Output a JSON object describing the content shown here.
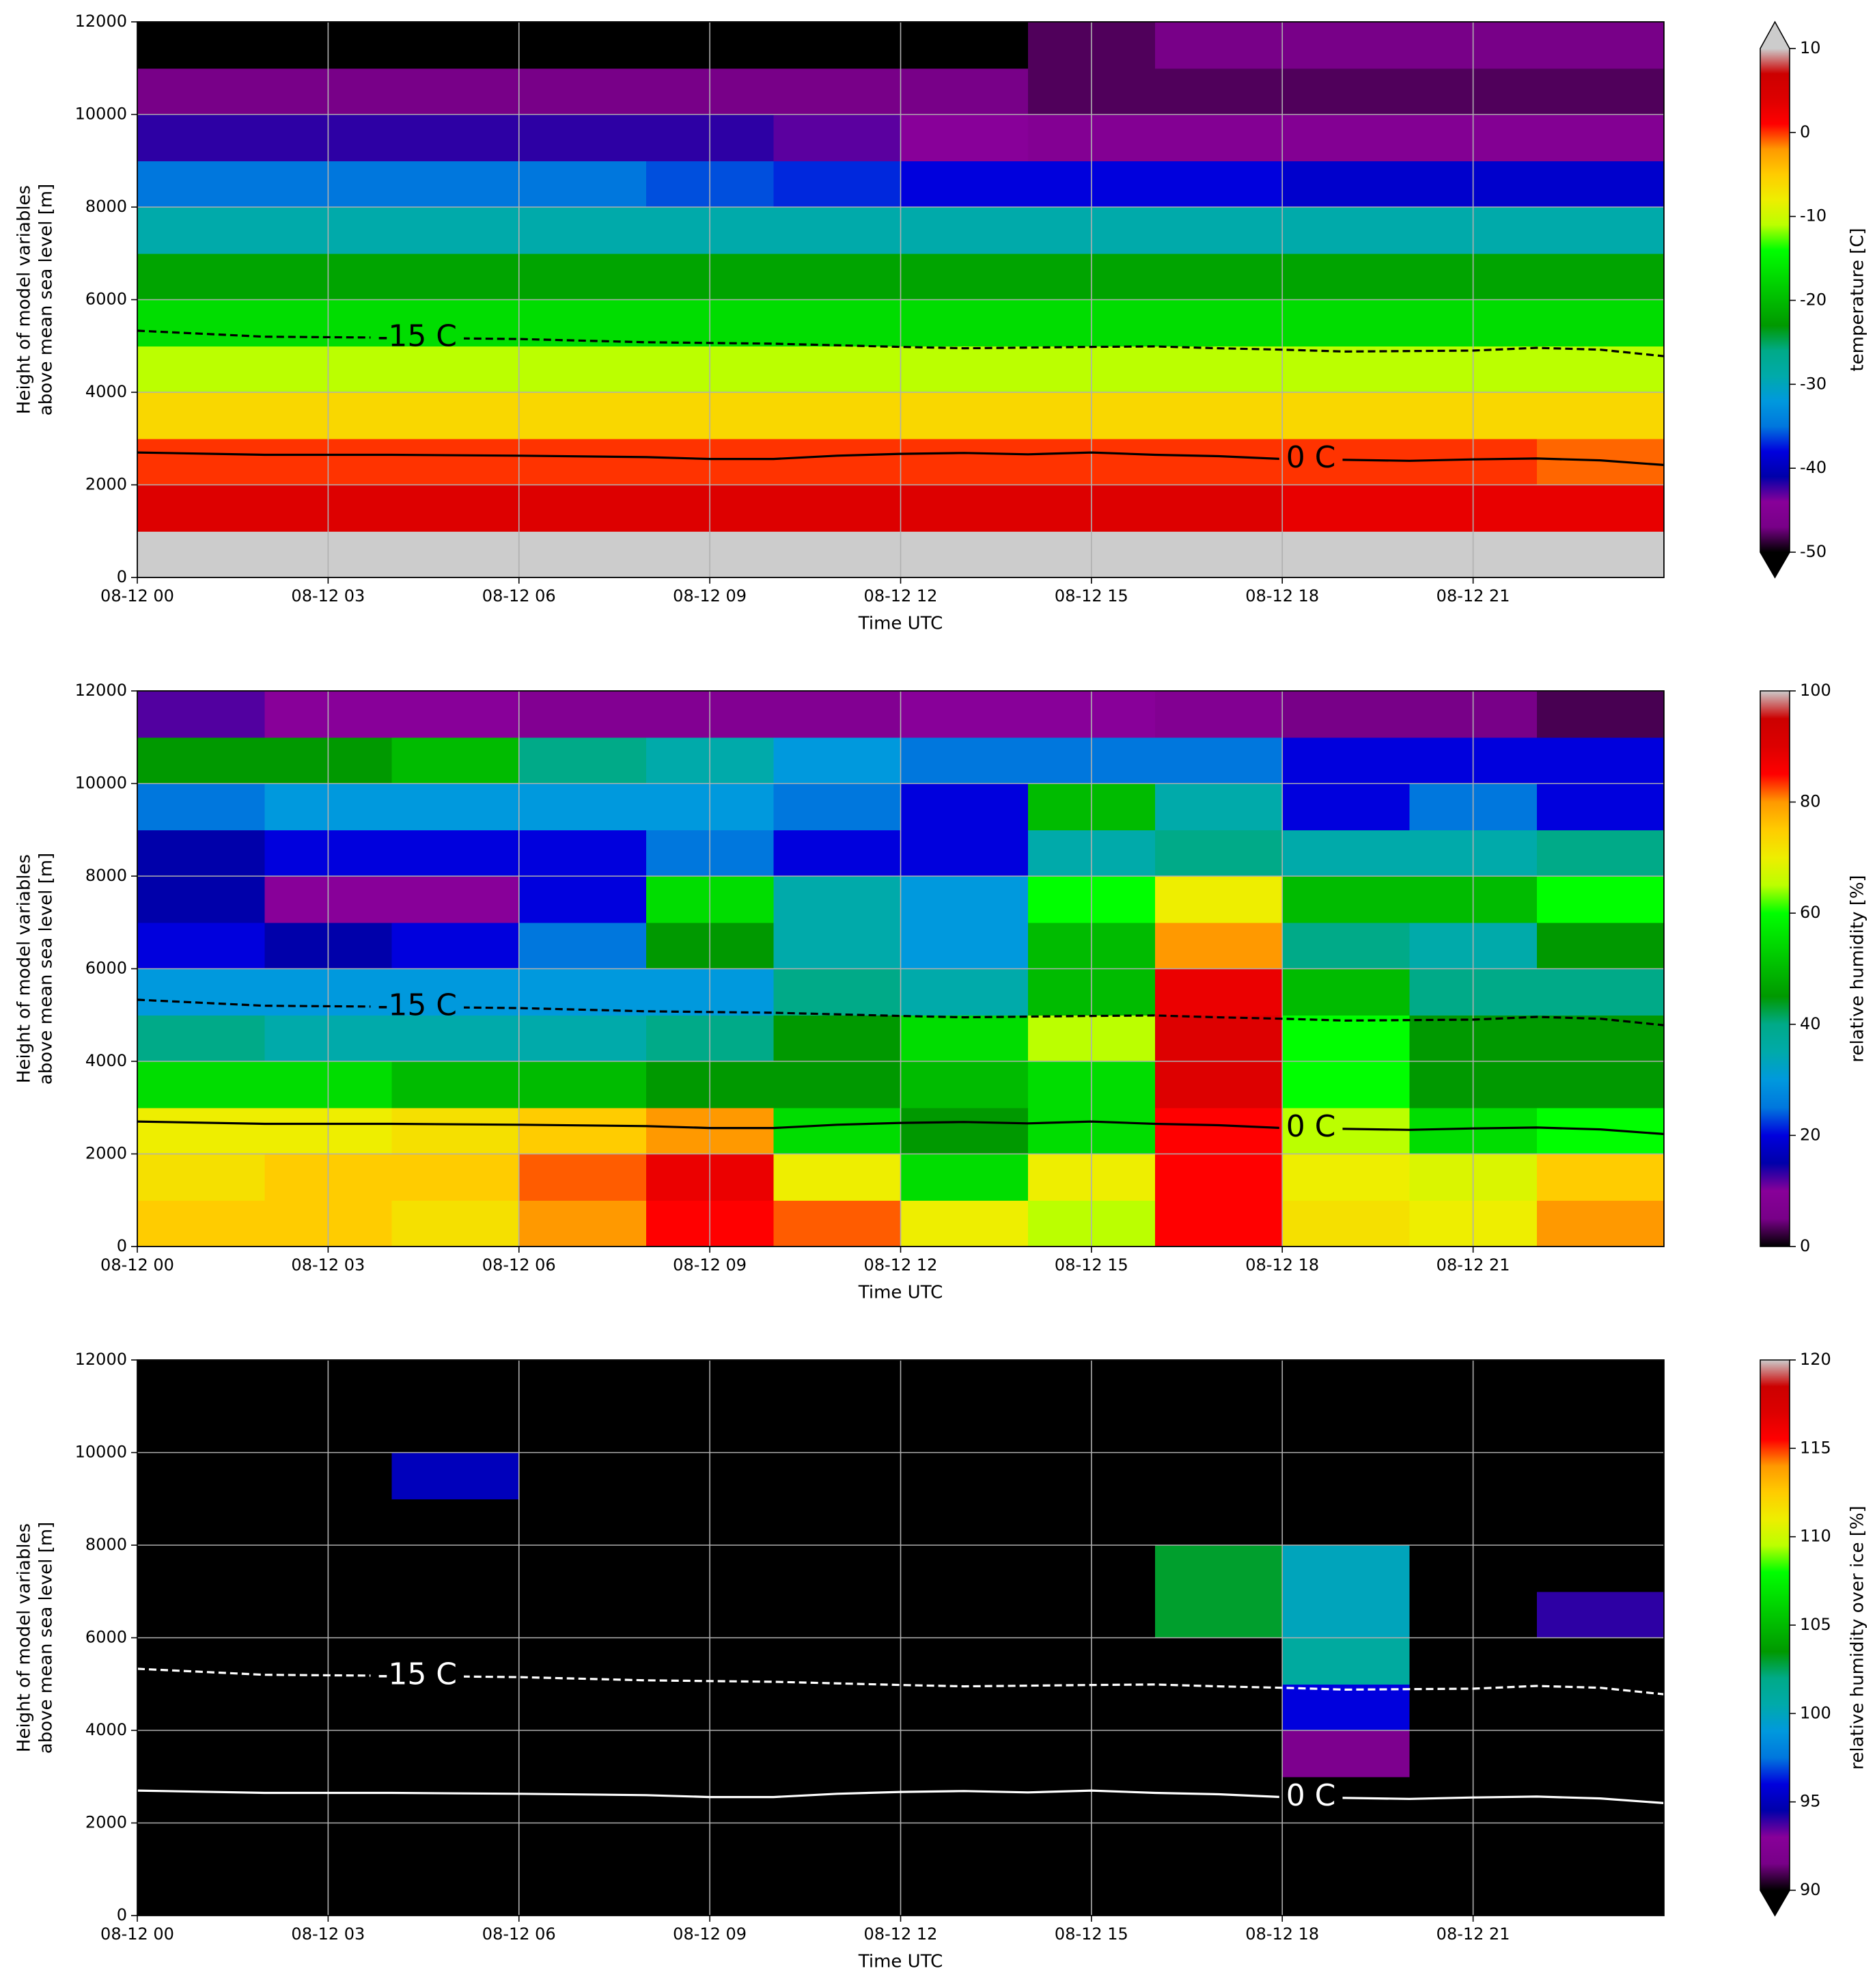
{
  "chart_data": [
    {
      "type": "heatmap",
      "xlabel": "Time UTC",
      "ylabel": [
        "Height of model variables",
        "above mean sea level [m]"
      ],
      "colorbar_label": "temperature [C]",
      "clim": [
        -50,
        10
      ],
      "cticks": [
        -50,
        -40,
        -30,
        -20,
        -10,
        0,
        10
      ],
      "extend": "both",
      "colormap": [
        "#000000",
        "#780088",
        "#880099",
        "#0000aa",
        "#0000dd",
        "#0077dd",
        "#0099dd",
        "#00aaaa",
        "#00aa88",
        "#009900",
        "#00bb00",
        "#00dd00",
        "#00ff00",
        "#bbff00",
        "#eeee00",
        "#ffcc00",
        "#ff9900",
        "#ff0000",
        "#dd0000",
        "#cc0000",
        "#cccccc"
      ],
      "under_color": "#000000",
      "over_color": "#cccccc",
      "xlim": [
        0,
        24
      ],
      "xticks": [
        {
          "value": 0,
          "label": "08-12 00"
        },
        {
          "value": 3,
          "label": "08-12 03"
        },
        {
          "value": 6,
          "label": "08-12 06"
        },
        {
          "value": 9,
          "label": "08-12 09"
        },
        {
          "value": 12,
          "label": "08-12 12"
        },
        {
          "value": 15,
          "label": "08-12 15"
        },
        {
          "value": 18,
          "label": "08-12 18"
        },
        {
          "value": 21,
          "label": "08-12 21"
        }
      ],
      "ylim": [
        0,
        12000
      ],
      "yticks": [
        0,
        2000,
        4000,
        6000,
        8000,
        10000,
        12000
      ],
      "grid": true,
      "x": [
        0,
        2,
        4,
        6,
        8,
        10,
        12,
        14,
        16,
        18,
        20,
        22
      ],
      "y": [
        0,
        1000,
        2000,
        3000,
        4000,
        5000,
        6000,
        7000,
        8000,
        9000,
        10000,
        11000
      ],
      "z": [
        [
          12,
          12,
          12,
          12,
          12,
          12,
          12,
          12,
          12,
          12,
          12,
          12
        ],
        [
          4,
          4,
          4,
          4,
          4,
          4,
          4,
          4,
          4,
          3,
          3,
          3
        ],
        [
          0,
          0,
          0,
          0,
          0,
          0,
          0,
          0,
          0,
          0,
          0,
          -1
        ],
        [
          -6,
          -6,
          -6,
          -6,
          -6,
          -6,
          -6,
          -6,
          -6,
          -6,
          -6,
          -6
        ],
        [
          -11,
          -11,
          -11,
          -11,
          -11,
          -11,
          -11,
          -11,
          -11,
          -11,
          -11,
          -11
        ],
        [
          -17,
          -17,
          -17,
          -17,
          -17,
          -17,
          -17,
          -17,
          -17,
          -17,
          -17,
          -17
        ],
        [
          -22,
          -22,
          -22,
          -22,
          -22,
          -22,
          -22,
          -22,
          -22,
          -22,
          -22,
          -22
        ],
        [
          -29,
          -29,
          -29,
          -29,
          -29,
          -29,
          -29,
          -29,
          -29,
          -29,
          -29,
          -29
        ],
        [
          -35,
          -35,
          -35,
          -35,
          -36,
          -37,
          -38,
          -38,
          -38,
          -39,
          -39,
          -39
        ],
        [
          -42,
          -42,
          -42,
          -42,
          -42,
          -43,
          -44,
          -45,
          -45,
          -45,
          -45,
          -45
        ],
        [
          -47,
          -47,
          -47,
          -47,
          -47,
          -47,
          -47,
          -48,
          -48,
          -48,
          -48,
          -48
        ],
        [
          -54,
          -54,
          -54,
          -53,
          -52,
          -51,
          -50,
          -48,
          -47,
          -47,
          -47,
          -47
        ]
      ],
      "contour_color": "#000000",
      "contours": [
        {
          "label": "0 C",
          "linestyle": "solid",
          "x": [
            0,
            2,
            4,
            6,
            8,
            9,
            10,
            11,
            12,
            13,
            14,
            15,
            16,
            17,
            18,
            19,
            20,
            21,
            22,
            23,
            24
          ],
          "values": [
            2700,
            2650,
            2650,
            2630,
            2600,
            2560,
            2560,
            2630,
            2670,
            2690,
            2660,
            2700,
            2650,
            2620,
            2560,
            2540,
            2520,
            2550,
            2570,
            2530,
            2430
          ]
        },
        {
          "label": "-15 C",
          "linestyle": "dashed",
          "x": [
            0,
            2,
            4,
            6,
            8,
            10,
            12,
            13,
            15,
            16,
            17,
            18,
            19,
            21,
            22,
            23,
            24
          ],
          "values": [
            5330,
            5200,
            5180,
            5150,
            5080,
            5050,
            4980,
            4950,
            4980,
            4990,
            4950,
            4920,
            4880,
            4900,
            4960,
            4920,
            4780
          ]
        }
      ]
    },
    {
      "type": "heatmap",
      "xlabel": "Time UTC",
      "ylabel": [
        "Height of model variables",
        "above mean sea level [m]"
      ],
      "colorbar_label": "relative humidity [%]",
      "clim": [
        0,
        100
      ],
      "cticks": [
        0,
        20,
        40,
        60,
        80,
        100
      ],
      "extend": "neither",
      "colormap": [
        "#000000",
        "#780088",
        "#880099",
        "#0000aa",
        "#0000dd",
        "#0077dd",
        "#0099dd",
        "#00aaaa",
        "#00aa88",
        "#009900",
        "#00bb00",
        "#00dd00",
        "#00ff00",
        "#bbff00",
        "#eeee00",
        "#ffcc00",
        "#ff9900",
        "#ff0000",
        "#dd0000",
        "#cc0000",
        "#cccccc"
      ],
      "under_color": "#000000",
      "over_color": "#cccccc",
      "xlim": [
        0,
        24
      ],
      "xticks": [
        {
          "value": 0,
          "label": "08-12 00"
        },
        {
          "value": 3,
          "label": "08-12 03"
        },
        {
          "value": 6,
          "label": "08-12 06"
        },
        {
          "value": 9,
          "label": "08-12 09"
        },
        {
          "value": 12,
          "label": "08-12 12"
        },
        {
          "value": 15,
          "label": "08-12 15"
        },
        {
          "value": 18,
          "label": "08-12 18"
        },
        {
          "value": 21,
          "label": "08-12 21"
        }
      ],
      "ylim": [
        0,
        12000
      ],
      "yticks": [
        0,
        2000,
        4000,
        6000,
        8000,
        10000,
        12000
      ],
      "grid": true,
      "x": [
        0,
        2,
        4,
        6,
        8,
        10,
        12,
        14,
        16,
        18,
        20,
        22
      ],
      "y": [
        0,
        1000,
        2000,
        3000,
        4000,
        5000,
        6000,
        7000,
        8000,
        9000,
        10000,
        11000
      ],
      "z": [
        [
          75,
          75,
          72,
          80,
          85,
          82,
          70,
          65,
          85,
          72,
          70,
          80
        ],
        [
          72,
          75,
          75,
          82,
          88,
          70,
          55,
          70,
          85,
          70,
          68,
          75
        ],
        [
          70,
          70,
          72,
          75,
          80,
          55,
          45,
          55,
          85,
          65,
          55,
          60
        ],
        [
          55,
          55,
          50,
          50,
          45,
          45,
          50,
          55,
          90,
          60,
          45,
          45
        ],
        [
          40,
          35,
          35,
          35,
          40,
          45,
          55,
          65,
          90,
          60,
          45,
          45
        ],
        [
          30,
          30,
          30,
          30,
          30,
          40,
          35,
          50,
          88,
          50,
          40,
          40
        ],
        [
          20,
          15,
          20,
          25,
          45,
          35,
          30,
          50,
          80,
          40,
          35,
          45
        ],
        [
          15,
          10,
          10,
          20,
          55,
          35,
          30,
          60,
          70,
          50,
          50,
          60
        ],
        [
          15,
          20,
          20,
          20,
          25,
          20,
          20,
          35,
          40,
          35,
          35,
          40
        ],
        [
          25,
          30,
          30,
          30,
          30,
          25,
          20,
          50,
          35,
          20,
          25,
          20
        ],
        [
          45,
          45,
          50,
          40,
          35,
          30,
          25,
          25,
          25,
          20,
          20,
          20
        ],
        [
          12,
          10,
          10,
          8,
          8,
          8,
          10,
          10,
          8,
          5,
          5,
          3
        ]
      ],
      "contour_color": "#000000",
      "contours": [
        {
          "label": "0 C",
          "linestyle": "solid",
          "x": [
            0,
            2,
            4,
            6,
            8,
            9,
            10,
            11,
            12,
            13,
            14,
            15,
            16,
            17,
            18,
            19,
            20,
            21,
            22,
            23,
            24
          ],
          "values": [
            2700,
            2650,
            2650,
            2630,
            2600,
            2560,
            2560,
            2630,
            2670,
            2690,
            2660,
            2700,
            2650,
            2620,
            2560,
            2540,
            2520,
            2550,
            2570,
            2530,
            2430
          ]
        },
        {
          "label": "-15 C",
          "linestyle": "dashed",
          "x": [
            0,
            2,
            4,
            6,
            8,
            10,
            12,
            13,
            15,
            16,
            17,
            18,
            19,
            21,
            22,
            23,
            24
          ],
          "values": [
            5330,
            5200,
            5180,
            5150,
            5080,
            5050,
            4980,
            4950,
            4980,
            4990,
            4950,
            4920,
            4880,
            4900,
            4960,
            4920,
            4780
          ]
        }
      ]
    },
    {
      "type": "heatmap",
      "xlabel": "Time UTC",
      "ylabel": [
        "Height of model variables",
        "above mean sea level [m]"
      ],
      "colorbar_label": "relative humidity over ice [%]",
      "clim": [
        90,
        120
      ],
      "cticks": [
        90,
        95,
        100,
        105,
        110,
        115,
        120
      ],
      "extend": "min",
      "colormap": [
        "#000000",
        "#780088",
        "#880099",
        "#0000aa",
        "#0000dd",
        "#0077dd",
        "#0099dd",
        "#00aaaa",
        "#00aa88",
        "#009900",
        "#00bb00",
        "#00dd00",
        "#00ff00",
        "#bbff00",
        "#eeee00",
        "#ffcc00",
        "#ff9900",
        "#ff0000",
        "#dd0000",
        "#cc0000",
        "#cccccc"
      ],
      "under_color": "#000000",
      "over_color": "#cccccc",
      "xlim": [
        0,
        24
      ],
      "xticks": [
        {
          "value": 0,
          "label": "08-12 00"
        },
        {
          "value": 3,
          "label": "08-12 03"
        },
        {
          "value": 6,
          "label": "08-12 06"
        },
        {
          "value": 9,
          "label": "08-12 09"
        },
        {
          "value": 12,
          "label": "08-12 12"
        },
        {
          "value": 15,
          "label": "08-12 15"
        },
        {
          "value": 18,
          "label": "08-12 18"
        },
        {
          "value": 21,
          "label": "08-12 21"
        }
      ],
      "ylim": [
        0,
        12000
      ],
      "yticks": [
        0,
        2000,
        4000,
        6000,
        8000,
        10000,
        12000
      ],
      "grid": true,
      "x": [
        0,
        2,
        4,
        6,
        8,
        10,
        12,
        14,
        16,
        18,
        20,
        22
      ],
      "y": [
        0,
        1000,
        2000,
        3000,
        4000,
        5000,
        6000,
        7000,
        8000,
        9000,
        10000,
        11000
      ],
      "z": [
        [
          80,
          80,
          80,
          80,
          80,
          80,
          80,
          80,
          80,
          80,
          80,
          80
        ],
        [
          80,
          80,
          80,
          80,
          80,
          80,
          80,
          80,
          80,
          80,
          80,
          80
        ],
        [
          80,
          80,
          80,
          80,
          80,
          80,
          80,
          80,
          80,
          80,
          80,
          80
        ],
        [
          80,
          80,
          80,
          80,
          80,
          80,
          80,
          80,
          80,
          92,
          80,
          80
        ],
        [
          80,
          80,
          80,
          80,
          80,
          80,
          80,
          80,
          80,
          96,
          80,
          80
        ],
        [
          80,
          80,
          80,
          80,
          80,
          80,
          80,
          80,
          80,
          101,
          80,
          80
        ],
        [
          80,
          80,
          80,
          80,
          80,
          80,
          80,
          80,
          103,
          100,
          80,
          94
        ],
        [
          80,
          80,
          80,
          80,
          80,
          80,
          80,
          80,
          103,
          100,
          80,
          80
        ],
        [
          80,
          80,
          80,
          80,
          80,
          80,
          80,
          80,
          80,
          80,
          80,
          80
        ],
        [
          80,
          80,
          95,
          80,
          80,
          80,
          80,
          80,
          80,
          80,
          80,
          80
        ],
        [
          80,
          80,
          80,
          80,
          80,
          80,
          80,
          80,
          80,
          80,
          80,
          80
        ],
        [
          80,
          80,
          80,
          80,
          80,
          80,
          80,
          80,
          80,
          80,
          80,
          80
        ]
      ],
      "contour_color": "#ffffff",
      "contours": [
        {
          "label": "0 C",
          "linestyle": "solid",
          "x": [
            0,
            2,
            4,
            6,
            8,
            9,
            10,
            11,
            12,
            13,
            14,
            15,
            16,
            17,
            18,
            19,
            20,
            21,
            22,
            23,
            24
          ],
          "values": [
            2700,
            2650,
            2650,
            2630,
            2600,
            2560,
            2560,
            2630,
            2670,
            2690,
            2660,
            2700,
            2650,
            2620,
            2560,
            2540,
            2520,
            2550,
            2570,
            2530,
            2430
          ]
        },
        {
          "label": "-15 C",
          "linestyle": "dashed",
          "x": [
            0,
            2,
            4,
            6,
            8,
            10,
            12,
            13,
            15,
            16,
            17,
            18,
            19,
            21,
            22,
            23,
            24
          ],
          "values": [
            5330,
            5200,
            5180,
            5150,
            5080,
            5050,
            4980,
            4950,
            4980,
            4990,
            4950,
            4920,
            4880,
            4900,
            4960,
            4920,
            4780
          ]
        }
      ]
    }
  ]
}
